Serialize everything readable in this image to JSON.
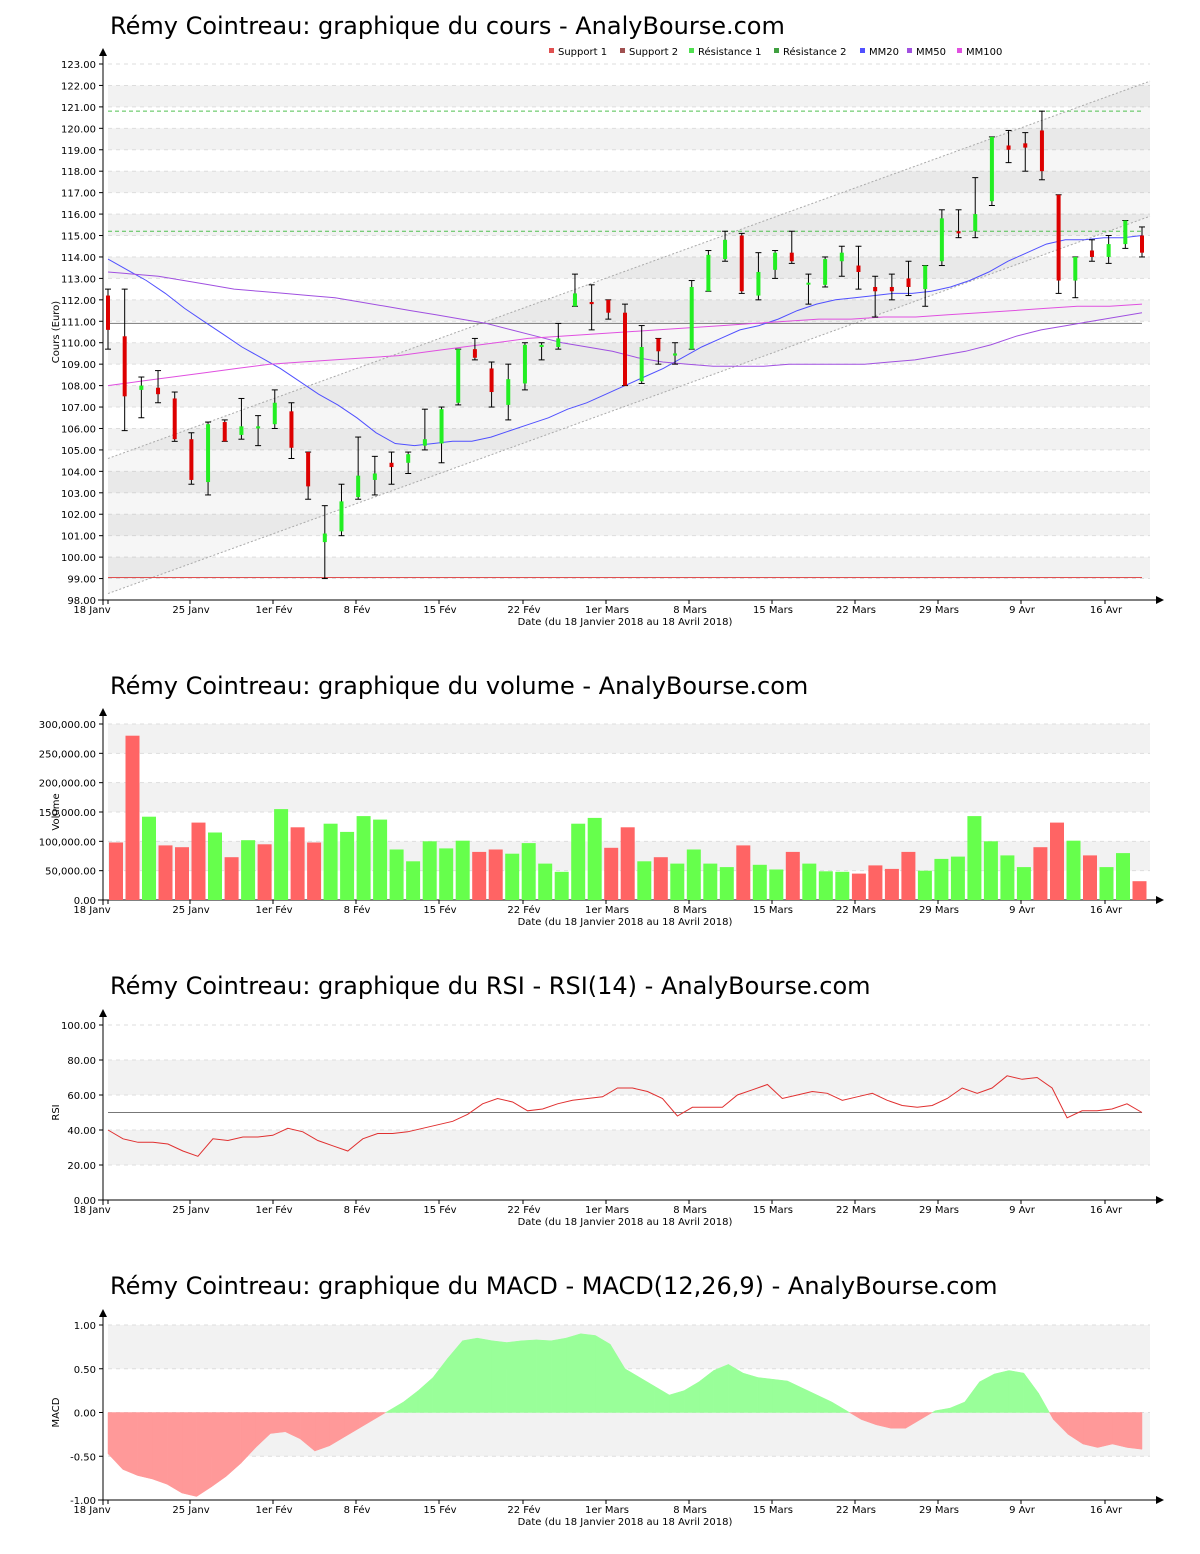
{
  "chart_data": [
    {
      "id": "price",
      "type": "candlestick",
      "title": "Rémy Cointreau: graphique du cours - AnalyBourse.com",
      "ylabel": "Cours (Euro)",
      "xlabel": "Date (du 18 Janvier 2018 au 18 Avril 2018)",
      "ylim": [
        98,
        123
      ],
      "ytick_labels": [
        "98.00",
        "99.00",
        "100.00",
        "101.00",
        "102.00",
        "103.00",
        "104.00",
        "105.00",
        "106.00",
        "107.00",
        "108.00",
        "109.00",
        "110.00",
        "111.00",
        "112.00",
        "113.00",
        "114.00",
        "115.00",
        "116.00",
        "117.00",
        "118.00",
        "119.00",
        "120.00",
        "121.00",
        "122.00",
        "123.00"
      ],
      "legend": [
        {
          "name": "Support 1",
          "color": "#e05050"
        },
        {
          "name": "Support 2",
          "color": "#a05050"
        },
        {
          "name": "Résistance 1",
          "color": "#50e050"
        },
        {
          "name": "Résistance 2",
          "color": "#40a040"
        },
        {
          "name": "MM20",
          "color": "#5050ff"
        },
        {
          "name": "MM50",
          "color": "#a050e0"
        },
        {
          "name": "MM100",
          "color": "#e050e0"
        }
      ],
      "candles": [
        {
          "o": 112.2,
          "h": 112.5,
          "l": 109.7,
          "c": 110.6
        },
        {
          "o": 110.3,
          "h": 112.5,
          "l": 105.9,
          "c": 107.5
        },
        {
          "o": 107.8,
          "h": 108.4,
          "l": 106.5,
          "c": 108.0
        },
        {
          "o": 107.9,
          "h": 108.7,
          "l": 107.2,
          "c": 107.6
        },
        {
          "o": 107.4,
          "h": 107.7,
          "l": 105.4,
          "c": 105.5
        },
        {
          "o": 105.5,
          "h": 105.8,
          "l": 103.4,
          "c": 103.6
        },
        {
          "o": 103.5,
          "h": 106.3,
          "l": 102.9,
          "c": 106.2
        },
        {
          "o": 106.3,
          "h": 106.4,
          "l": 105.4,
          "c": 105.4
        },
        {
          "o": 105.7,
          "h": 107.4,
          "l": 105.5,
          "c": 106.1
        },
        {
          "o": 106.0,
          "h": 106.6,
          "l": 105.2,
          "c": 106.1
        },
        {
          "o": 106.2,
          "h": 107.8,
          "l": 106.0,
          "c": 107.2
        },
        {
          "o": 106.8,
          "h": 107.2,
          "l": 104.6,
          "c": 105.1
        },
        {
          "o": 104.9,
          "h": 104.9,
          "l": 102.7,
          "c": 103.3
        },
        {
          "o": 100.7,
          "h": 102.4,
          "l": 99.0,
          "c": 101.1
        },
        {
          "o": 101.2,
          "h": 103.4,
          "l": 101.0,
          "c": 102.6
        },
        {
          "o": 102.8,
          "h": 105.6,
          "l": 102.7,
          "c": 103.8
        },
        {
          "o": 103.6,
          "h": 104.7,
          "l": 102.9,
          "c": 103.9
        },
        {
          "o": 104.4,
          "h": 104.9,
          "l": 103.4,
          "c": 104.2
        },
        {
          "o": 104.4,
          "h": 104.9,
          "l": 103.9,
          "c": 104.8
        },
        {
          "o": 105.2,
          "h": 106.9,
          "l": 105.0,
          "c": 105.5
        },
        {
          "o": 105.3,
          "h": 107.0,
          "l": 104.4,
          "c": 106.9
        },
        {
          "o": 107.2,
          "h": 109.7,
          "l": 107.1,
          "c": 109.7
        },
        {
          "o": 109.7,
          "h": 110.2,
          "l": 109.2,
          "c": 109.3
        },
        {
          "o": 108.8,
          "h": 109.1,
          "l": 107.0,
          "c": 107.7
        },
        {
          "o": 107.1,
          "h": 109.0,
          "l": 106.4,
          "c": 108.3
        },
        {
          "o": 108.1,
          "h": 110.0,
          "l": 107.8,
          "c": 109.9
        },
        {
          "o": 109.8,
          "h": 110.0,
          "l": 109.2,
          "c": 109.9
        },
        {
          "o": 109.8,
          "h": 110.9,
          "l": 109.7,
          "c": 110.2
        },
        {
          "o": 111.7,
          "h": 113.2,
          "l": 111.7,
          "c": 112.3
        },
        {
          "o": 111.9,
          "h": 112.7,
          "l": 110.6,
          "c": 111.8
        },
        {
          "o": 112.0,
          "h": 112.0,
          "l": 111.1,
          "c": 111.4
        },
        {
          "o": 111.4,
          "h": 111.8,
          "l": 108.0,
          "c": 108.0
        },
        {
          "o": 108.2,
          "h": 110.8,
          "l": 108.1,
          "c": 109.8
        },
        {
          "o": 110.2,
          "h": 110.2,
          "l": 109.0,
          "c": 109.6
        },
        {
          "o": 109.4,
          "h": 110.0,
          "l": 109.0,
          "c": 109.5
        },
        {
          "o": 109.7,
          "h": 112.9,
          "l": 109.7,
          "c": 112.6
        },
        {
          "o": 112.4,
          "h": 114.3,
          "l": 112.4,
          "c": 114.1
        },
        {
          "o": 113.9,
          "h": 115.2,
          "l": 113.8,
          "c": 114.8
        },
        {
          "o": 115.0,
          "h": 115.1,
          "l": 112.3,
          "c": 112.4
        },
        {
          "o": 112.2,
          "h": 114.2,
          "l": 112.0,
          "c": 113.3
        },
        {
          "o": 113.4,
          "h": 114.3,
          "l": 113.0,
          "c": 114.2
        },
        {
          "o": 114.2,
          "h": 115.2,
          "l": 113.7,
          "c": 113.8
        },
        {
          "o": 112.8,
          "h": 113.2,
          "l": 111.8,
          "c": 112.8
        },
        {
          "o": 112.7,
          "h": 114.0,
          "l": 112.6,
          "c": 113.9
        },
        {
          "o": 113.8,
          "h": 114.5,
          "l": 113.1,
          "c": 114.2
        },
        {
          "o": 113.6,
          "h": 114.5,
          "l": 112.5,
          "c": 113.3
        },
        {
          "o": 112.6,
          "h": 113.1,
          "l": 111.2,
          "c": 112.4
        },
        {
          "o": 112.6,
          "h": 113.2,
          "l": 112.0,
          "c": 112.4
        },
        {
          "o": 113.0,
          "h": 113.8,
          "l": 112.2,
          "c": 112.6
        },
        {
          "o": 112.5,
          "h": 113.6,
          "l": 111.7,
          "c": 113.6
        },
        {
          "o": 113.8,
          "h": 116.2,
          "l": 113.6,
          "c": 115.8
        },
        {
          "o": 115.2,
          "h": 116.2,
          "l": 114.9,
          "c": 115.1
        },
        {
          "o": 115.2,
          "h": 117.7,
          "l": 114.9,
          "c": 116.0
        },
        {
          "o": 116.6,
          "h": 119.6,
          "l": 116.4,
          "c": 119.6
        },
        {
          "o": 119.2,
          "h": 119.9,
          "l": 118.4,
          "c": 119.0
        },
        {
          "o": 119.3,
          "h": 119.8,
          "l": 118.0,
          "c": 119.1
        },
        {
          "o": 119.9,
          "h": 120.8,
          "l": 117.6,
          "c": 118.0
        },
        {
          "o": 116.9,
          "h": 116.9,
          "l": 112.3,
          "c": 112.9
        },
        {
          "o": 112.9,
          "h": 114.0,
          "l": 112.1,
          "c": 114.0
        },
        {
          "o": 114.3,
          "h": 114.8,
          "l": 113.8,
          "c": 114.0
        },
        {
          "o": 114.0,
          "h": 115.0,
          "l": 113.7,
          "c": 114.6
        },
        {
          "o": 114.6,
          "h": 115.7,
          "l": 114.4,
          "c": 115.7
        },
        {
          "o": 115.0,
          "h": 115.4,
          "l": 114.0,
          "c": 114.2
        }
      ],
      "support_1": 99.05,
      "support_2": 110.9,
      "resistance_1": 115.2,
      "resistance_2": 120.8,
      "channel_lower": [
        [
          0,
          98.3
        ],
        [
          62,
          115.9
        ]
      ],
      "channel_upper": [
        [
          0,
          104.6
        ],
        [
          62,
          122.2
        ]
      ],
      "mm20": [
        113.9,
        113.4,
        112.9,
        112.3,
        111.6,
        111.0,
        110.4,
        109.8,
        109.3,
        108.8,
        108.2,
        107.6,
        107.1,
        106.5,
        105.8,
        105.3,
        105.2,
        105.3,
        105.4,
        105.4,
        105.6,
        105.9,
        106.2,
        106.5,
        106.9,
        107.2,
        107.6,
        108.0,
        108.4,
        108.8,
        109.3,
        109.8,
        110.2,
        110.6,
        110.8,
        111.1,
        111.5,
        111.8,
        112.0,
        112.1,
        112.2,
        112.3,
        112.3,
        112.4,
        112.6,
        112.9,
        113.3,
        113.8,
        114.2,
        114.6,
        114.8,
        114.8,
        114.9,
        114.9,
        115.0
      ],
      "mm50": [
        113.3,
        113.2,
        113.1,
        112.9,
        112.7,
        112.5,
        112.4,
        112.3,
        112.2,
        112.1,
        111.9,
        111.7,
        111.5,
        111.3,
        111.1,
        110.9,
        110.6,
        110.3,
        110.0,
        109.8,
        109.6,
        109.3,
        109.1,
        109.0,
        108.9,
        108.9,
        108.9,
        109.0,
        109.0,
        109.0,
        109.0,
        109.1,
        109.2,
        109.4,
        109.6,
        109.9,
        110.3,
        110.6,
        110.8,
        111.0,
        111.2,
        111.4
      ],
      "mm100": [
        108.0,
        108.2,
        108.4,
        108.6,
        108.8,
        109.0,
        109.1,
        109.2,
        109.3,
        109.4,
        109.6,
        109.8,
        110.0,
        110.2,
        110.3,
        110.4,
        110.5,
        110.6,
        110.7,
        110.8,
        110.9,
        111.0,
        111.1,
        111.1,
        111.2,
        111.2,
        111.3,
        111.4,
        111.5,
        111.6,
        111.7,
        111.7,
        111.8
      ],
      "x_tick_labels": [
        "18 Janv",
        "25 Janv",
        "1er Fév",
        "8 Fév",
        "15 Fév",
        "22 Fév",
        "1er Mars",
        "8 Mars",
        "15 Mars",
        "22 Mars",
        "29 Mars",
        "9 Avr",
        "16 Avr"
      ]
    },
    {
      "id": "volume",
      "type": "bar",
      "title": "Rémy Cointreau: graphique du volume - AnalyBourse.com",
      "ylabel": "Volume",
      "xlabel": "Date (du 18 Janvier 2018 au 18 Avril 2018)",
      "ylim": [
        0,
        300000
      ],
      "ytick_labels": [
        "0.00",
        "50,000.00",
        "100,000.00",
        "150,000.00",
        "200,000.00",
        "250,000.00",
        "300,000.00"
      ],
      "values": [
        98000,
        280000,
        142000,
        93000,
        90000,
        132000,
        115000,
        73000,
        102000,
        95000,
        155000,
        124000,
        98000,
        130000,
        116000,
        143000,
        137000,
        86000,
        66000,
        100000,
        88000,
        101000,
        82000,
        86000,
        79000,
        97000,
        62000,
        48000,
        130000,
        140000,
        89000,
        124000,
        66000,
        73000,
        62000,
        86000,
        62000,
        56000,
        93000,
        60000,
        52000,
        82000,
        62000,
        49000,
        48000,
        45000,
        59000,
        53000,
        82000,
        50000,
        70000,
        74000,
        143000,
        100000,
        76000,
        56000,
        90000,
        132000,
        101000,
        76000,
        56000,
        80000,
        32000
      ],
      "colors": [
        "red",
        "red",
        "green",
        "red",
        "red",
        "red",
        "green",
        "red",
        "green",
        "red",
        "green",
        "red",
        "red",
        "green",
        "green",
        "green",
        "green",
        "green",
        "green",
        "green",
        "green",
        "green",
        "red",
        "red",
        "green",
        "green",
        "green",
        "green",
        "green",
        "green",
        "red",
        "red",
        "green",
        "red",
        "green",
        "green",
        "green",
        "green",
        "red",
        "green",
        "green",
        "red",
        "green",
        "green",
        "green",
        "red",
        "red",
        "red",
        "red",
        "green",
        "green",
        "green",
        "green",
        "green",
        "green",
        "green",
        "red",
        "red",
        "green",
        "red",
        "green",
        "green",
        "red"
      ],
      "x_tick_labels": [
        "18 Janv",
        "25 Janv",
        "1er Fév",
        "8 Fév",
        "15 Fév",
        "22 Fév",
        "1er Mars",
        "8 Mars",
        "15 Mars",
        "22 Mars",
        "29 Mars",
        "9 Avr",
        "16 Avr"
      ]
    },
    {
      "id": "rsi",
      "type": "line",
      "title": "Rémy Cointreau: graphique du RSI - RSI(14) - AnalyBourse.com",
      "ylabel": "RSI",
      "xlabel": "Date (du 18 Janvier 2018 au 18 Avril 2018)",
      "ylim": [
        0,
        100
      ],
      "ytick_labels": [
        "0.00",
        "20.00",
        "40.00",
        "60.00",
        "80.00",
        "100.00"
      ],
      "reference_line": 50,
      "values": [
        40,
        35,
        33,
        33,
        32,
        28,
        25,
        35,
        34,
        36,
        36,
        37,
        41,
        39,
        34,
        31,
        28,
        35,
        38,
        38,
        39,
        41,
        43,
        45,
        49,
        55,
        58,
        56,
        51,
        52,
        55,
        57,
        58,
        59,
        64,
        64,
        62,
        58,
        48,
        53,
        53,
        53,
        60,
        63,
        66,
        58,
        60,
        62,
        61,
        57,
        59,
        61,
        57,
        54,
        53,
        54,
        58,
        64,
        61,
        64,
        71,
        69,
        70,
        64,
        47,
        51,
        51,
        52,
        55,
        50
      ],
      "x_tick_labels": [
        "18 Janv",
        "25 Janv",
        "1er Fév",
        "8 Fév",
        "15 Fév",
        "22 Fév",
        "1er Mars",
        "8 Mars",
        "15 Mars",
        "22 Mars",
        "29 Mars",
        "9 Avr",
        "16 Avr"
      ]
    },
    {
      "id": "macd",
      "type": "area",
      "title": "Rémy Cointreau: graphique du MACD - MACD(12,26,9) - AnalyBourse.com",
      "ylabel": "MACD",
      "xlabel": "Date (du 18 Janvier 2018 au 18 Avril 2018)",
      "ylim": [
        -1,
        1
      ],
      "ytick_labels": [
        "-1.00",
        "-0.50",
        "0.00",
        "0.50",
        "1.00"
      ],
      "values": [
        -0.47,
        -0.65,
        -0.72,
        -0.76,
        -0.82,
        -0.92,
        -0.96,
        -0.85,
        -0.73,
        -0.58,
        -0.4,
        -0.24,
        -0.22,
        -0.3,
        -0.44,
        -0.38,
        -0.28,
        -0.18,
        -0.08,
        0.02,
        0.12,
        0.25,
        0.4,
        0.62,
        0.82,
        0.85,
        0.82,
        0.8,
        0.82,
        0.83,
        0.82,
        0.85,
        0.9,
        0.88,
        0.78,
        0.5,
        0.4,
        0.3,
        0.2,
        0.25,
        0.35,
        0.48,
        0.55,
        0.45,
        0.4,
        0.38,
        0.36,
        0.28,
        0.2,
        0.12,
        0.02,
        -0.08,
        -0.14,
        -0.18,
        -0.18,
        -0.08,
        0.02,
        0.05,
        0.12,
        0.35,
        0.44,
        0.48,
        0.45,
        0.22,
        -0.08,
        -0.25,
        -0.36,
        -0.4,
        -0.36,
        -0.4,
        -0.42
      ],
      "colors": {
        "positive": "#99ff99",
        "negative": "#ff9999"
      },
      "x_tick_labels": [
        "18 Janv",
        "25 Janv",
        "1er Fév",
        "8 Fév",
        "15 Fév",
        "22 Fév",
        "1er Mars",
        "8 Mars",
        "15 Mars",
        "22 Mars",
        "29 Mars",
        "9 Avr",
        "16 Avr"
      ]
    }
  ]
}
